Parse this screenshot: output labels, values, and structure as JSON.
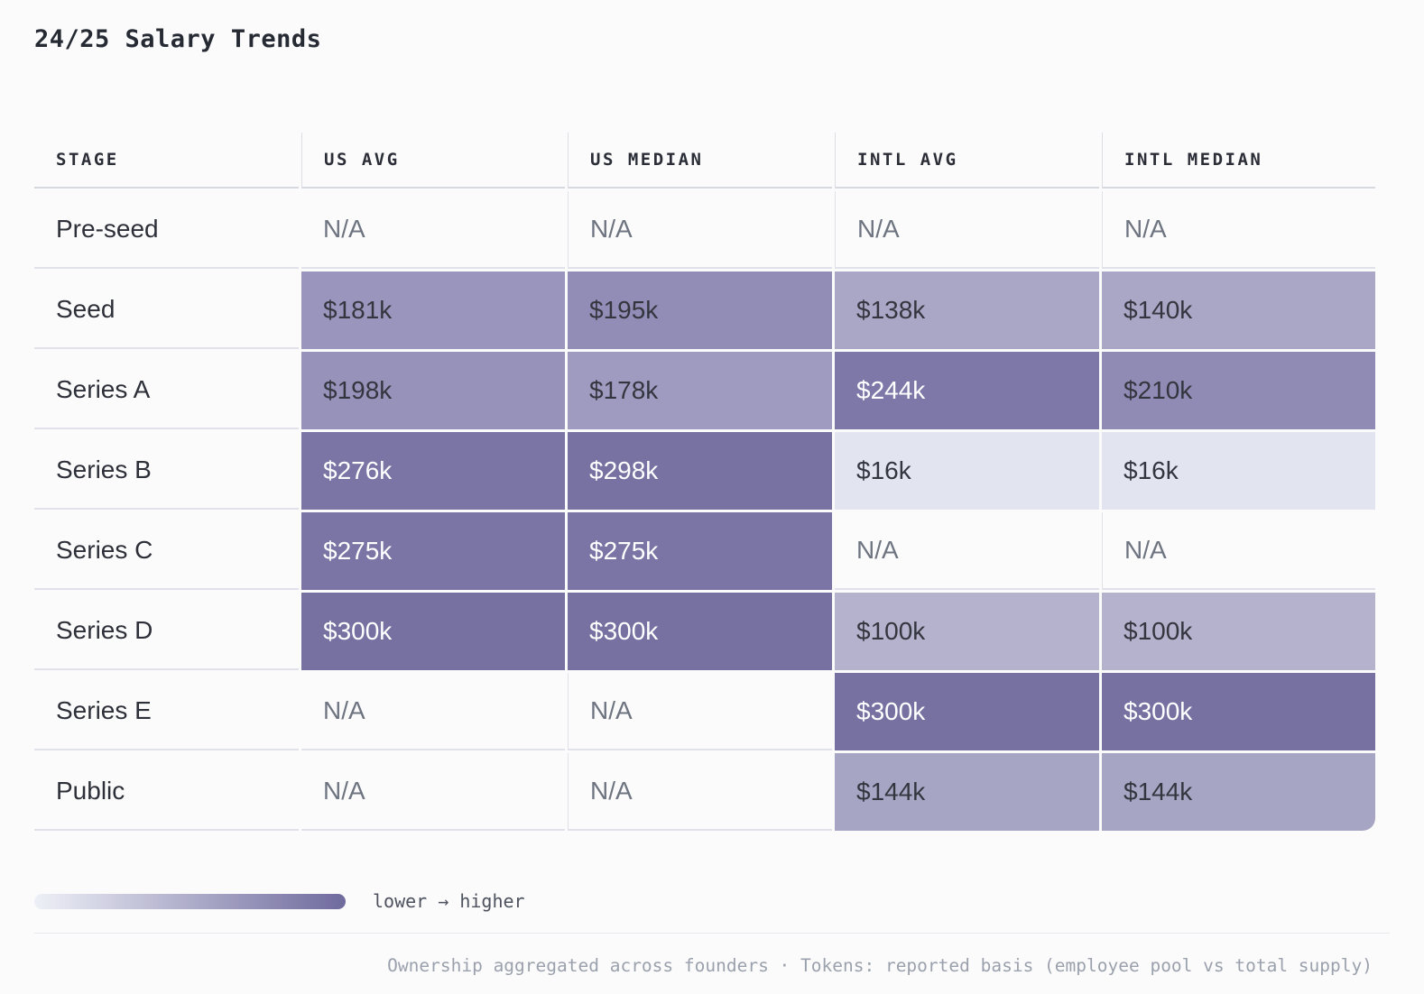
{
  "title": "24/25 Salary Trends",
  "colors": {
    "dark_text": "#34363f",
    "white_text": "#ffffff",
    "na_text": "#6e7480",
    "legend_gradient_from": "#eef0f7",
    "legend_gradient_to": "#6f6a9d"
  },
  "table": {
    "columns": [
      "STAGE",
      "US AVG",
      "US MEDIAN",
      "INTL AVG",
      "INTL MEDIAN"
    ],
    "rows": [
      {
        "stage": "Pre-seed",
        "cells": [
          {
            "text": "N/A",
            "na": true
          },
          {
            "text": "N/A",
            "na": true
          },
          {
            "text": "N/A",
            "na": true
          },
          {
            "text": "N/A",
            "na": true
          }
        ]
      },
      {
        "stage": "Seed",
        "cells": [
          {
            "text": "$181k",
            "bg": "#9995bc",
            "fg": "dark"
          },
          {
            "text": "$195k",
            "bg": "#918db6",
            "fg": "dark"
          },
          {
            "text": "$138k",
            "bg": "#aaa7c6",
            "fg": "dark"
          },
          {
            "text": "$140k",
            "bg": "#a9a6c6",
            "fg": "dark"
          }
        ]
      },
      {
        "stage": "Series A",
        "cells": [
          {
            "text": "$198k",
            "bg": "#9692ba",
            "fg": "dark"
          },
          {
            "text": "$178k",
            "bg": "#9f9bc0",
            "fg": "dark"
          },
          {
            "text": "$244k",
            "bg": "#7d78a7",
            "fg": "white"
          },
          {
            "text": "$210k",
            "bg": "#8f8bb4",
            "fg": "dark"
          }
        ]
      },
      {
        "stage": "Series B",
        "cells": [
          {
            "text": "$276k",
            "bg": "#7a75a4",
            "fg": "white"
          },
          {
            "text": "$298k",
            "bg": "#7772a2",
            "fg": "white"
          },
          {
            "text": "$16k",
            "bg": "#e2e4ef",
            "fg": "dark"
          },
          {
            "text": "$16k",
            "bg": "#e2e4ef",
            "fg": "dark"
          }
        ]
      },
      {
        "stage": "Series C",
        "cells": [
          {
            "text": "$275k",
            "bg": "#7b75a5",
            "fg": "white"
          },
          {
            "text": "$275k",
            "bg": "#7b75a5",
            "fg": "white"
          },
          {
            "text": "N/A",
            "na": true
          },
          {
            "text": "N/A",
            "na": true
          }
        ]
      },
      {
        "stage": "Series D",
        "cells": [
          {
            "text": "$300k",
            "bg": "#7671a1",
            "fg": "white"
          },
          {
            "text": "$300k",
            "bg": "#7671a1",
            "fg": "white"
          },
          {
            "text": "$100k",
            "bg": "#b5b2ce",
            "fg": "dark"
          },
          {
            "text": "$100k",
            "bg": "#b5b2ce",
            "fg": "dark"
          }
        ]
      },
      {
        "stage": "Series E",
        "cells": [
          {
            "text": "N/A",
            "na": true
          },
          {
            "text": "N/A",
            "na": true
          },
          {
            "text": "$300k",
            "bg": "#7671a1",
            "fg": "white"
          },
          {
            "text": "$300k",
            "bg": "#7671a1",
            "fg": "white"
          }
        ]
      },
      {
        "stage": "Public",
        "cells": [
          {
            "text": "N/A",
            "na": true
          },
          {
            "text": "N/A",
            "na": true
          },
          {
            "text": "$144k",
            "bg": "#a7a5c4",
            "fg": "dark"
          },
          {
            "text": "$144k",
            "bg": "#a7a5c4",
            "fg": "dark"
          }
        ]
      }
    ]
  },
  "legend": {
    "label": "lower → higher"
  },
  "footer": "Ownership aggregated across founders · Tokens: reported basis (employee pool vs total supply)",
  "chart_data": {
    "type": "heatmap",
    "title": "24/25 Salary Trends",
    "unit": "$k USD",
    "categories": [
      "Pre-seed",
      "Seed",
      "Series A",
      "Series B",
      "Series C",
      "Series D",
      "Series E",
      "Public"
    ],
    "series": [
      {
        "name": "US AVG",
        "values": [
          null,
          181,
          198,
          276,
          275,
          300,
          null,
          null
        ]
      },
      {
        "name": "US MEDIAN",
        "values": [
          null,
          195,
          178,
          298,
          275,
          300,
          null,
          null
        ]
      },
      {
        "name": "INTL AVG",
        "values": [
          null,
          138,
          244,
          16,
          null,
          100,
          300,
          144
        ]
      },
      {
        "name": "INTL MEDIAN",
        "values": [
          null,
          140,
          210,
          16,
          null,
          100,
          300,
          144
        ]
      }
    ],
    "legend": "lower → higher",
    "legend_position": "bottom-left",
    "color_scale": {
      "low": "#eef0f7",
      "high": "#6f6a9d"
    }
  }
}
